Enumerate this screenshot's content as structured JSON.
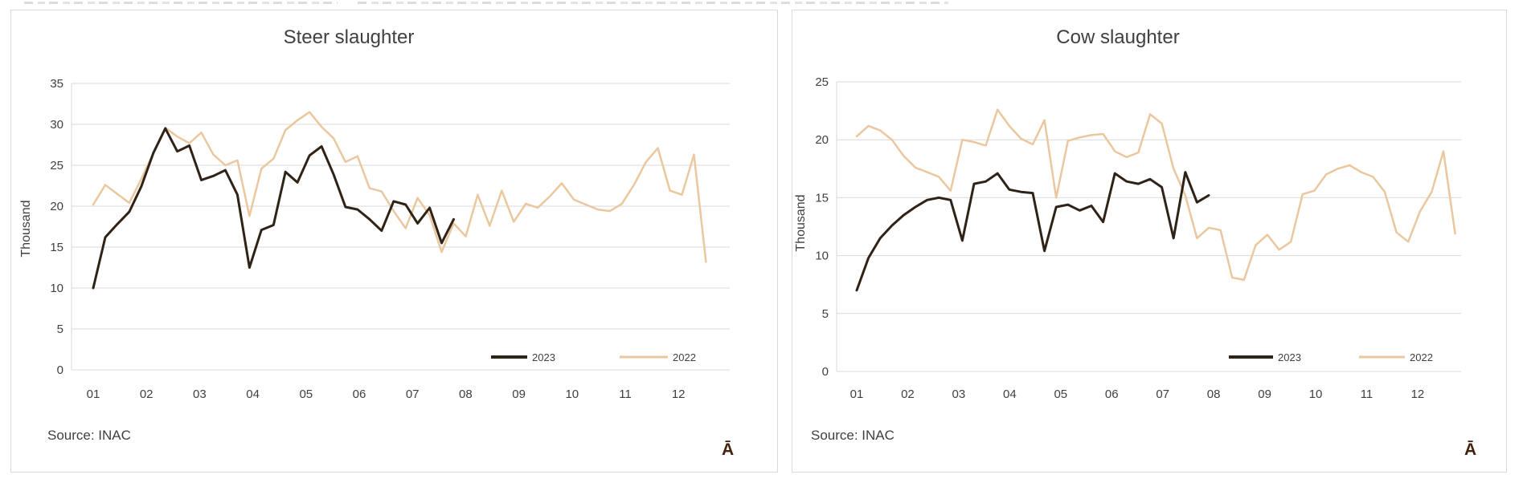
{
  "chart_data": [
    {
      "type": "line",
      "title": "Steer slaughter",
      "ylabel": "Thousand",
      "source": "Source: INAC",
      "watermark": "Ā",
      "x_categories": [
        "01",
        "02",
        "03",
        "04",
        "05",
        "06",
        "07",
        "08",
        "09",
        "10",
        "11",
        "12"
      ],
      "x_unit": "week-of-year",
      "y_ticks": [
        35,
        30,
        25,
        20,
        15,
        10,
        5,
        0
      ],
      "ylim": [
        0,
        35
      ],
      "grid": true,
      "legend_position": "inside-bottom-right",
      "series": [
        {
          "name": "2023",
          "color": "#2f2216",
          "values": [
            10.0,
            16.2,
            17.8,
            19.3,
            22.4,
            26.5,
            29.5,
            26.7,
            27.4,
            23.2,
            23.7,
            24.4,
            21.4,
            12.5,
            17.1,
            17.7,
            24.2,
            22.9,
            26.2,
            27.3,
            23.9,
            19.9,
            19.6,
            18.4,
            17.0,
            20.6,
            20.2,
            17.9,
            19.8,
            15.5,
            18.4
          ]
        },
        {
          "name": "2022",
          "color": "#eac79e",
          "values": [
            20.2,
            22.6,
            21.5,
            20.4,
            23.3,
            26.5,
            29.6,
            28.5,
            27.7,
            29.0,
            26.3,
            25.0,
            25.6,
            18.8,
            24.6,
            25.8,
            29.3,
            30.5,
            31.5,
            29.7,
            28.3,
            25.4,
            26.1,
            22.2,
            21.8,
            19.4,
            17.3,
            21.0,
            18.9,
            14.4,
            17.9,
            16.3,
            21.4,
            17.6,
            21.9,
            18.1,
            20.3,
            19.8,
            21.2,
            22.8,
            20.8,
            20.2,
            19.6,
            19.4,
            20.3,
            22.6,
            25.4,
            27.1,
            21.9,
            21.4,
            26.3,
            13.2
          ]
        }
      ]
    },
    {
      "type": "line",
      "title": "Cow slaughter",
      "ylabel": "Thousand",
      "source": "Source: INAC",
      "watermark": "Ā",
      "x_categories": [
        "01",
        "02",
        "03",
        "04",
        "05",
        "06",
        "07",
        "08",
        "09",
        "10",
        "11",
        "12"
      ],
      "x_unit": "week-of-year",
      "y_ticks": [
        25,
        20,
        15,
        10,
        5,
        0
      ],
      "ylim": [
        0,
        25
      ],
      "grid": true,
      "legend_position": "inside-bottom-right",
      "series": [
        {
          "name": "2023",
          "color": "#2f2216",
          "values": [
            7.0,
            9.8,
            11.5,
            12.6,
            13.5,
            14.2,
            14.8,
            15.0,
            14.8,
            11.3,
            16.2,
            16.4,
            17.1,
            15.7,
            15.5,
            15.4,
            10.4,
            14.2,
            14.4,
            13.9,
            14.3,
            12.9,
            17.1,
            16.4,
            16.2,
            16.6,
            15.9,
            11.5,
            17.2,
            14.6,
            15.2
          ]
        },
        {
          "name": "2022",
          "color": "#eac79e",
          "values": [
            20.3,
            21.2,
            20.8,
            20.0,
            18.6,
            17.6,
            17.2,
            16.8,
            15.6,
            20.0,
            19.8,
            19.5,
            22.6,
            21.2,
            20.1,
            19.6,
            21.7,
            15.0,
            19.9,
            20.2,
            20.4,
            20.5,
            19.0,
            18.5,
            18.9,
            22.2,
            21.4,
            17.5,
            15.2,
            11.5,
            12.4,
            12.2,
            8.1,
            7.9,
            10.9,
            11.8,
            10.5,
            11.2,
            15.3,
            15.6,
            17.0,
            17.5,
            17.8,
            17.2,
            16.8,
            15.5,
            12.0,
            11.2,
            13.8,
            15.5,
            19.0,
            11.9
          ]
        }
      ]
    }
  ],
  "colors": {
    "gridline": "#d9d9d9",
    "axis_text": "#404040",
    "legend_text": "#404040",
    "series_2023": "#2f2216",
    "series_2022": "#eac79e",
    "watermark": "#44220f"
  }
}
